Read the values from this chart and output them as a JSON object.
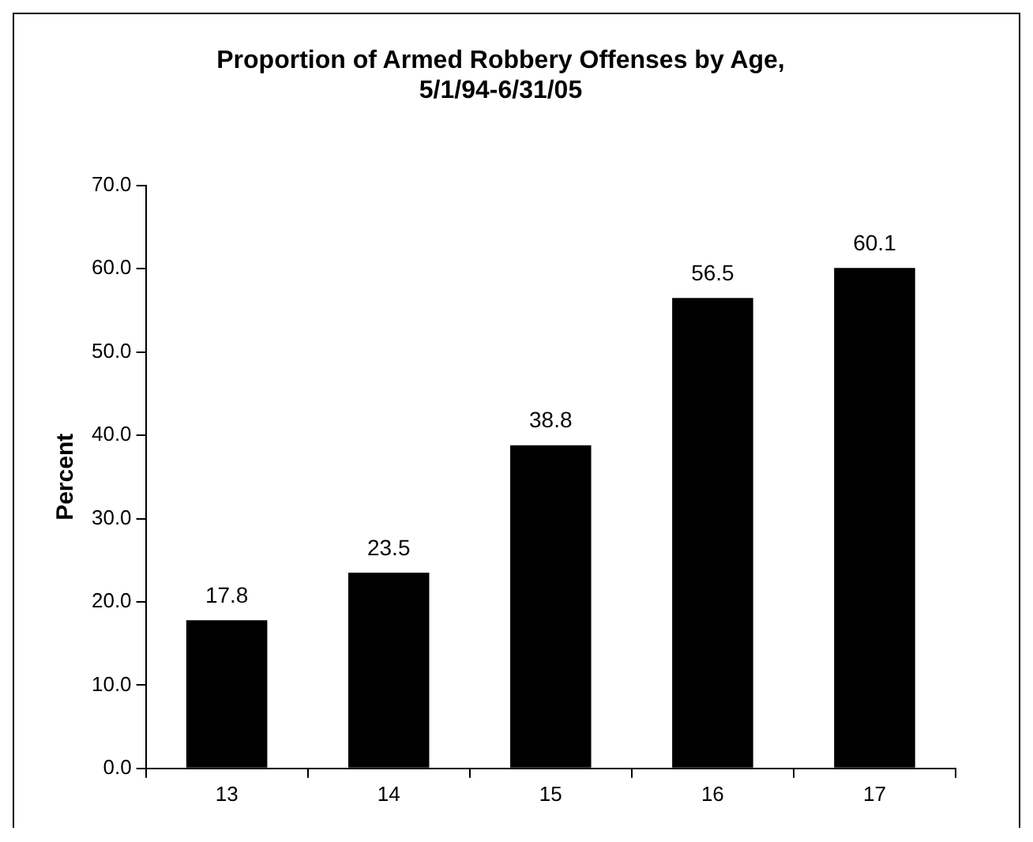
{
  "chart_data": {
    "type": "bar",
    "title": [
      "Proportion of Armed Robbery Offenses by Age,",
      "5/1/94-6/31/05"
    ],
    "ylabel": "Percent",
    "categories": [
      "13",
      "14",
      "15",
      "16",
      "17"
    ],
    "values": [
      17.8,
      23.5,
      38.8,
      56.5,
      60.1
    ],
    "color": "#000000",
    "ylim": [
      0,
      70
    ],
    "yticks": [
      {
        "value": 0,
        "label": "0.0"
      },
      {
        "value": 10,
        "label": "10.0"
      },
      {
        "value": 20,
        "label": "20.0"
      },
      {
        "value": 30,
        "label": "30.0"
      },
      {
        "value": 40,
        "label": "40.0"
      },
      {
        "value": 50,
        "label": "50.0"
      },
      {
        "value": 60,
        "label": "60.0"
      },
      {
        "value": 70,
        "label": "70.0"
      }
    ],
    "grid": false,
    "legend": false,
    "data_labels": true
  }
}
